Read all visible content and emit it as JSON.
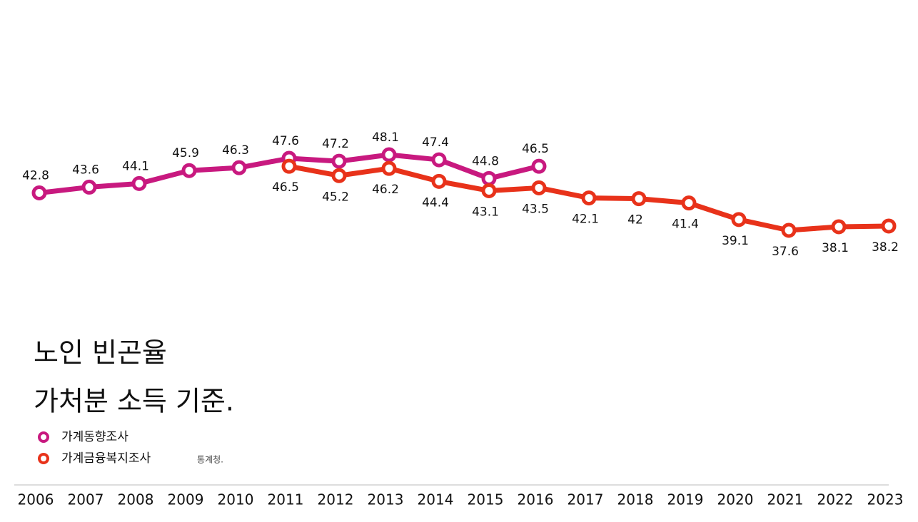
{
  "chart_data": {
    "type": "line",
    "title": [
      "노인 빈곤율",
      "가처분 소득 기준."
    ],
    "source": "통계청.",
    "categories": [
      "2006",
      "2007",
      "2008",
      "2009",
      "2010",
      "2011",
      "2012",
      "2013",
      "2014",
      "2015",
      "2016",
      "2017",
      "2018",
      "2019",
      "2020",
      "2021",
      "2022",
      "2023"
    ],
    "series": [
      {
        "name": "가계동향조사",
        "color": "#c8197f",
        "values": [
          42.8,
          43.6,
          44.1,
          45.9,
          46.3,
          47.6,
          47.2,
          48.1,
          47.4,
          44.8,
          46.5,
          null,
          null,
          null,
          null,
          null,
          null,
          null
        ]
      },
      {
        "name": "가계금융복지조사",
        "color": "#e8321a",
        "values": [
          null,
          null,
          null,
          null,
          null,
          46.5,
          45.2,
          46.2,
          44.4,
          43.1,
          43.5,
          42.1,
          42,
          41.4,
          39.1,
          37.6,
          38.1,
          38.2
        ]
      }
    ]
  }
}
